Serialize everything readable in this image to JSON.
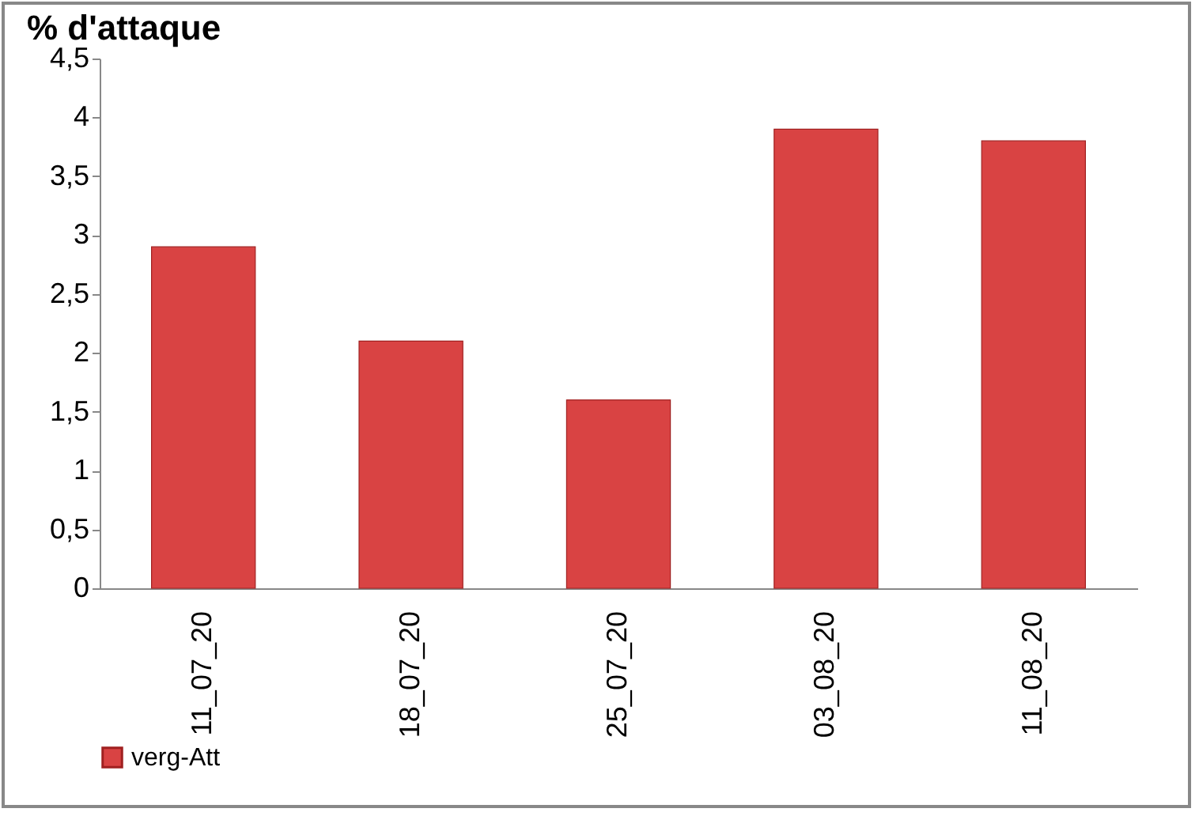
{
  "chart_data": {
    "type": "bar",
    "title": "% d'attaque",
    "categories": [
      "11_07_20",
      "18_07_20",
      "25_07_20",
      "03_08_20",
      "11_08_20"
    ],
    "series": [
      {
        "name": "verg-Att",
        "color": "#d94343",
        "values": [
          2.9,
          2.1,
          1.6,
          3.9,
          3.8
        ]
      }
    ],
    "ylim": [
      0,
      4.5
    ],
    "yticks": [
      0,
      {
        "value": 0.5,
        "label": "0,5"
      },
      1,
      {
        "value": 1.5,
        "label": "1,5"
      },
      2,
      {
        "value": 2.5,
        "label": "2,5"
      },
      3,
      {
        "value": 3.5,
        "label": "3,5"
      },
      4,
      {
        "value": 4.5,
        "label": "4,5"
      }
    ],
    "grid": false,
    "legend": "bottom"
  }
}
